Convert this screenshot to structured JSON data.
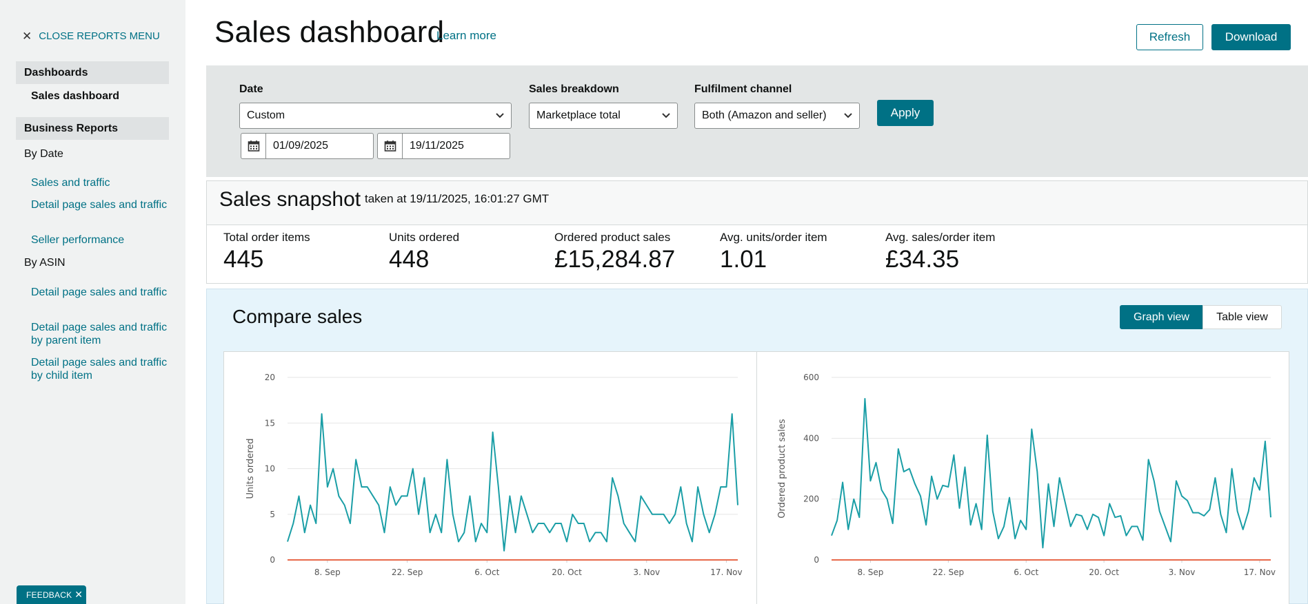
{
  "sidebar": {
    "close_label": "CLOSE REPORTS MENU",
    "dashboards_header": "Dashboards",
    "active_item": "Sales dashboard",
    "business_header": "Business Reports",
    "by_date": "By Date",
    "date_links": [
      "Sales and traffic",
      "Detail page sales and traffic",
      "Seller performance"
    ],
    "by_asin": "By ASIN",
    "asin_links": [
      "Detail page sales and traffic",
      "Detail page sales and traffic by parent item",
      "Detail page sales and traffic by child item"
    ],
    "feedback": "FEEDBACK"
  },
  "header": {
    "title": "Sales dashboard",
    "learn_more": "Learn more",
    "refresh": "Refresh",
    "download": "Download"
  },
  "filters": {
    "date_label": "Date",
    "date_value": "Custom",
    "start_date": "01/09/2025",
    "end_date": "19/11/2025",
    "breakdown_label": "Sales breakdown",
    "breakdown_value": "Marketplace total",
    "channel_label": "Fulfilment channel",
    "channel_value": "Both (Amazon and seller)",
    "apply": "Apply"
  },
  "snapshot": {
    "title": "Sales snapshot",
    "taken_at": "taken at 19/11/2025, 16:01:27 GMT",
    "metrics": [
      {
        "label": "Total order items",
        "value": "445"
      },
      {
        "label": "Units ordered",
        "value": "448"
      },
      {
        "label": "Ordered product sales",
        "value": "£15,284.87"
      },
      {
        "label": "Avg. units/order item",
        "value": "1.01"
      },
      {
        "label": "Avg. sales/order item",
        "value": "£34.35"
      }
    ]
  },
  "compare": {
    "title": "Compare sales",
    "graph_view": "Graph view",
    "table_view": "Table view"
  },
  "colors": {
    "accent": "#007185",
    "series": "#1a9ea6",
    "baseline": "#e8684a"
  },
  "chart_data": [
    {
      "type": "line",
      "ylabel": "Units ordered",
      "ylim": [
        0,
        20
      ],
      "yticks": [
        0,
        5,
        10,
        15,
        20
      ],
      "xlim": [
        "2025-09-01",
        "2025-11-19"
      ],
      "xticks": [
        "8. Sep",
        "22. Sep",
        "6. Oct",
        "20. Oct",
        "3. Nov",
        "17. Nov"
      ],
      "grid": true,
      "series": [
        {
          "values": [
            2,
            4,
            7,
            3,
            6,
            4,
            16,
            8,
            10,
            7,
            6,
            4,
            11,
            8,
            8,
            7,
            6,
            3,
            8,
            6,
            7,
            7,
            10,
            5,
            9,
            3,
            5,
            3,
            11,
            5,
            2,
            3,
            7,
            2,
            4,
            3,
            14,
            8,
            1,
            7,
            3,
            7,
            5,
            3,
            4,
            4,
            3,
            4,
            4,
            2,
            5,
            4,
            4,
            2,
            3,
            3,
            2,
            9,
            7,
            4,
            3,
            2,
            7,
            6,
            5,
            5,
            5,
            4,
            5,
            8,
            4,
            2,
            8,
            5,
            3,
            5,
            8,
            8,
            16,
            6
          ]
        },
        {
          "values": [
            0,
            0,
            0,
            0,
            0,
            0,
            0,
            0,
            0,
            0,
            0,
            0,
            0,
            0,
            0,
            0,
            0,
            0,
            0,
            0,
            0,
            0,
            0,
            0,
            0,
            0,
            0,
            0,
            0,
            0,
            0,
            0,
            0,
            0,
            0,
            0,
            0,
            0,
            0,
            0,
            0,
            0,
            0,
            0,
            0,
            0,
            0,
            0,
            0,
            0,
            0,
            0,
            0,
            0,
            0,
            0,
            0,
            0,
            0,
            0,
            0,
            0,
            0,
            0,
            0,
            0,
            0,
            0,
            0,
            0,
            0,
            0,
            0,
            0,
            0,
            0,
            0,
            0,
            0,
            0
          ]
        }
      ]
    },
    {
      "type": "line",
      "ylabel": "Ordered product sales",
      "ylim": [
        0,
        600
      ],
      "yticks": [
        0,
        200,
        400,
        600
      ],
      "xlim": [
        "2025-09-01",
        "2025-11-19"
      ],
      "xticks": [
        "8. Sep",
        "22. Sep",
        "6. Oct",
        "20. Oct",
        "3. Nov",
        "17. Nov"
      ],
      "grid": true,
      "series": [
        {
          "values": [
            80,
            130,
            255,
            100,
            200,
            140,
            530,
            260,
            320,
            230,
            200,
            120,
            365,
            290,
            300,
            250,
            210,
            115,
            275,
            200,
            245,
            240,
            345,
            170,
            305,
            115,
            185,
            100,
            410,
            160,
            70,
            110,
            205,
            70,
            130,
            100,
            430,
            290,
            40,
            250,
            110,
            270,
            190,
            110,
            150,
            145,
            100,
            150,
            140,
            80,
            185,
            140,
            145,
            80,
            110,
            110,
            65,
            330,
            260,
            160,
            110,
            60,
            260,
            210,
            195,
            155,
            155,
            145,
            165,
            270,
            150,
            90,
            300,
            160,
            100,
            160,
            270,
            230,
            390,
            140
          ]
        },
        {
          "values": [
            0,
            0,
            0,
            0,
            0,
            0,
            0,
            0,
            0,
            0,
            0,
            0,
            0,
            0,
            0,
            0,
            0,
            0,
            0,
            0,
            0,
            0,
            0,
            0,
            0,
            0,
            0,
            0,
            0,
            0,
            0,
            0,
            0,
            0,
            0,
            0,
            0,
            0,
            0,
            0,
            0,
            0,
            0,
            0,
            0,
            0,
            0,
            0,
            0,
            0,
            0,
            0,
            0,
            0,
            0,
            0,
            0,
            0,
            0,
            0,
            0,
            0,
            0,
            0,
            0,
            0,
            0,
            0,
            0,
            0,
            0,
            0,
            0,
            0,
            0,
            0,
            0,
            0,
            0,
            0
          ]
        }
      ]
    }
  ]
}
